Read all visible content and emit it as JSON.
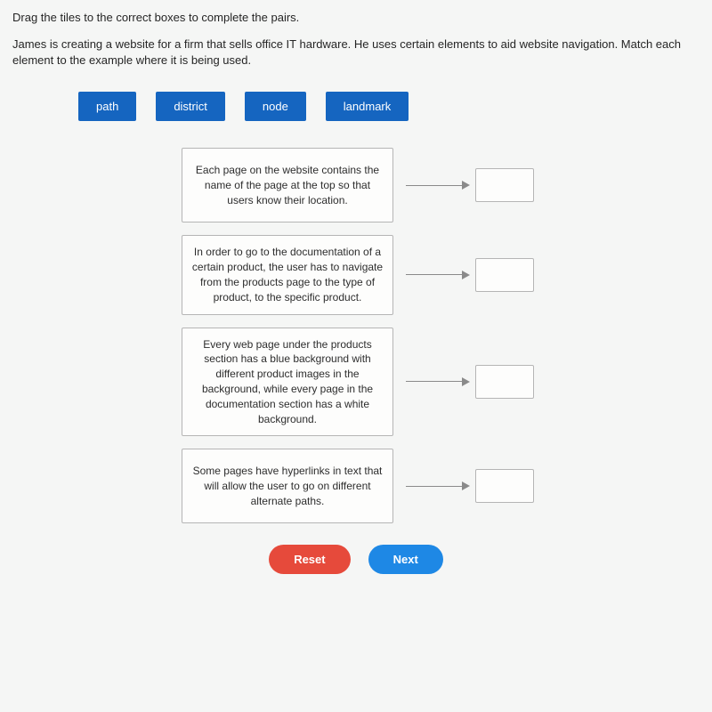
{
  "instruction": "Drag the tiles to the correct boxes to complete the pairs.",
  "scenario": "James is creating a website for a firm that sells office IT hardware. He uses certain elements to aid website navigation. Match each element to the example where it is being used.",
  "tiles": {
    "items": [
      "path",
      "district",
      "node",
      "landmark"
    ],
    "bg_color": "#1565c0",
    "text_color": "#ffffff",
    "fontsize": 13
  },
  "pairs": [
    {
      "text": "Each page on the website contains the name of the page at the top so that users know their location."
    },
    {
      "text": "In order to go to the documentation of a certain product, the user has to navigate from the products page to the type of product, to the specific product."
    },
    {
      "text": "Every web page under the products section has a blue background with different product images in the background, while every page in the documentation section has a white background."
    },
    {
      "text": "Some pages have hyperlinks in text that will allow the user to go on different alternate paths."
    }
  ],
  "buttons": {
    "reset": "Reset",
    "next": "Next",
    "reset_color": "#e64a3b",
    "next_color": "#1e88e5"
  },
  "layout": {
    "page_bg": "#f5f6f5",
    "box_border": "#b5b5b5",
    "arrow_color": "#8a8a8a",
    "desc_box_width": 238,
    "drop_box_width": 66,
    "drop_box_height": 38,
    "instruction_fontsize": 13,
    "desc_fontsize": 12
  }
}
